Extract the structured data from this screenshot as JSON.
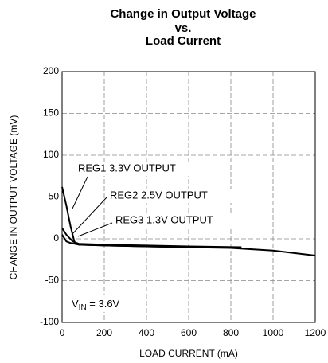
{
  "chart_data": {
    "type": "line",
    "title": [
      "Change in Output Voltage",
      "vs.",
      "Load Current"
    ],
    "xlabel": "LOAD CURRENT (mA)",
    "ylabel": "CHANGE IN OUTPUT VOLTAGE (mV)",
    "xlim": [
      0,
      1200
    ],
    "xticks": [
      0,
      200,
      400,
      600,
      800,
      1000,
      1200
    ],
    "ylim": [
      -100,
      200
    ],
    "yticks": [
      -100,
      -50,
      0,
      50,
      100,
      150,
      200
    ],
    "grid": true,
    "series": [
      {
        "name": "REG1 3.3V OUTPUT",
        "color": "#000000",
        "x": [
          0,
          20,
          40,
          60,
          80,
          200,
          400,
          600,
          800,
          1000,
          1100,
          1200
        ],
        "values": [
          62,
          40,
          15,
          -5,
          -7,
          -8,
          -9,
          -10,
          -11,
          -14,
          -17,
          -20
        ]
      },
      {
        "name": "REG2 2.5V OUTPUT",
        "color": "#000000",
        "x": [
          0,
          20,
          50,
          80,
          200,
          400,
          600,
          850
        ],
        "values": [
          13,
          5,
          -3,
          -6,
          -7,
          -8,
          -9,
          -10
        ]
      },
      {
        "name": "REG3 1.3V OUTPUT",
        "color": "#000000",
        "x": [
          0,
          20,
          40,
          60,
          80,
          200,
          400,
          600,
          850
        ],
        "values": [
          5,
          -3,
          -5,
          -6,
          -7,
          -8,
          -9,
          -10,
          -10
        ]
      }
    ],
    "annotation": {
      "main": "V",
      "sub": "IN",
      "rest": " = 3.6V"
    }
  }
}
